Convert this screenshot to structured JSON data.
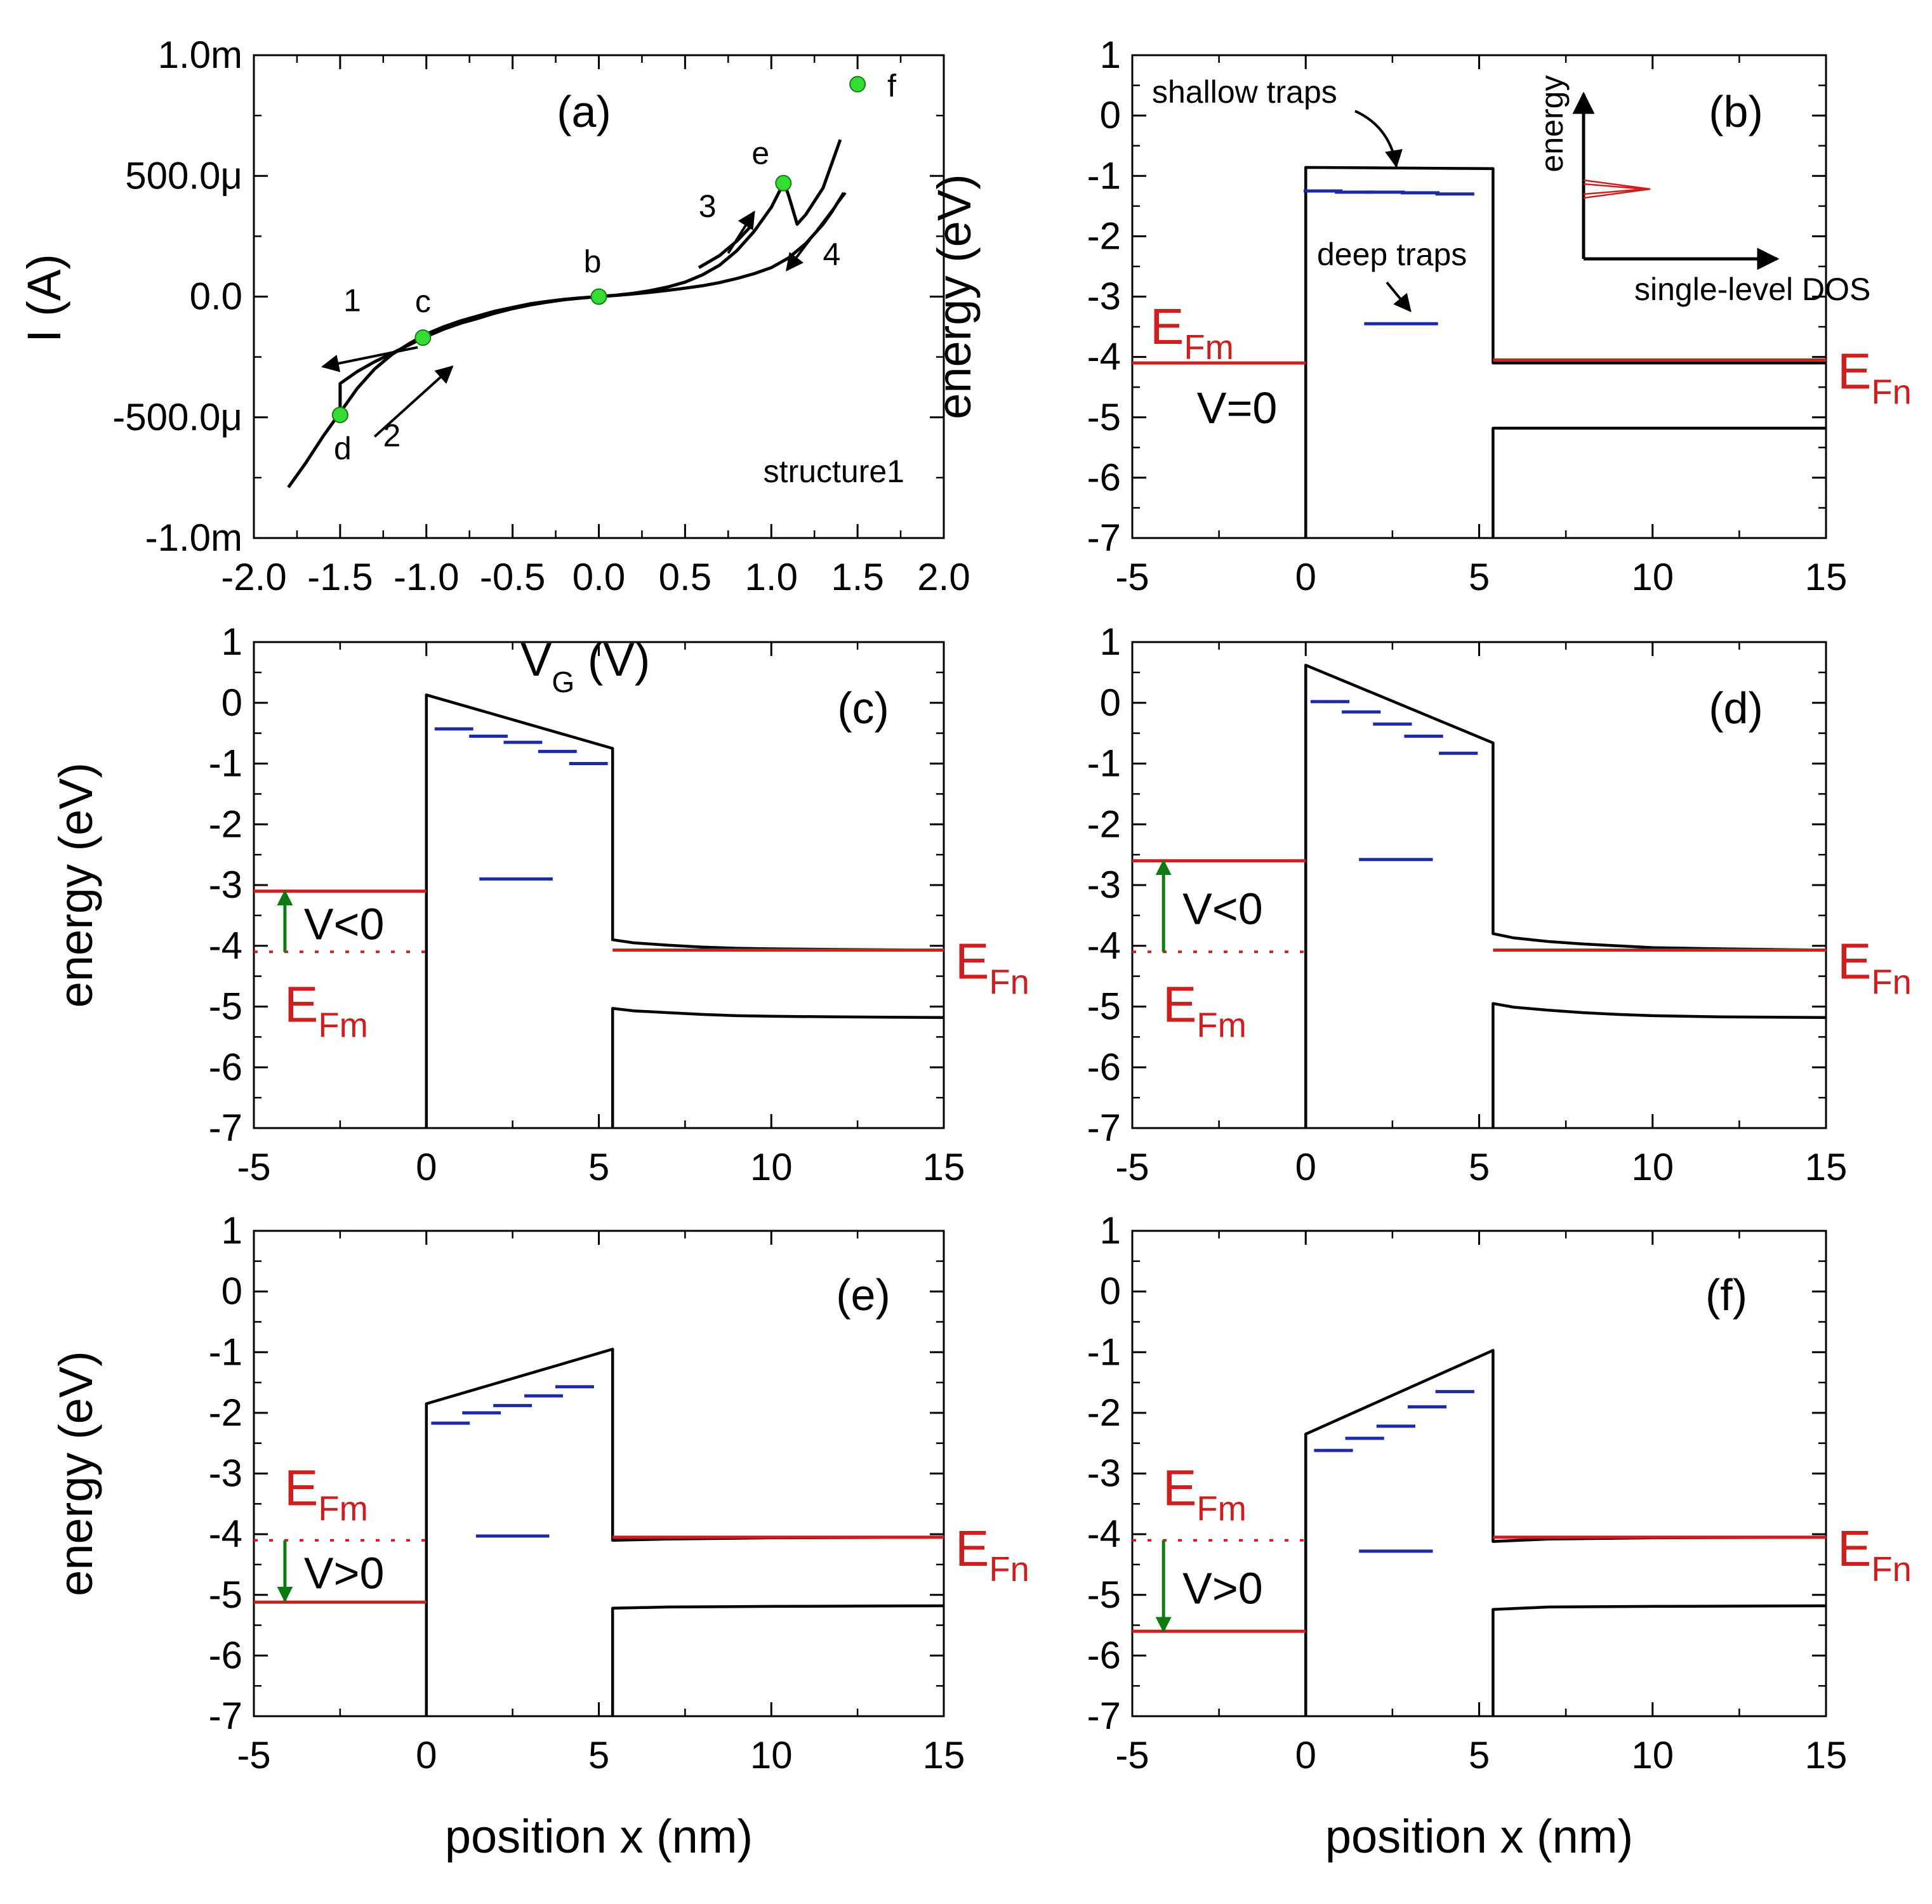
{
  "figure": {
    "colors": {
      "band": "#000000",
      "fermi": "#cc1f1f",
      "trap": "#1d2aa8",
      "bias_arrow": "#0f7a14",
      "point": "#33dd33",
      "dos_peak": "#cc1f1f"
    }
  },
  "chart_data": [
    {
      "id": "a",
      "type": "line",
      "panel_label": "(a)",
      "xlabel": "V",
      "xlabel_sub": "G",
      "xlabel_unit": " (V)",
      "ylabel": "I (A)",
      "xlim": [
        -2.0,
        2.0
      ],
      "ylim": [
        -0.001,
        0.001
      ],
      "x_ticks": [
        -2.0,
        -1.5,
        -1.0,
        -0.5,
        0.0,
        0.5,
        1.0,
        1.5,
        2.0
      ],
      "x_tick_labels": [
        "-2.0",
        "-1.5",
        "-1.0",
        "-0.5",
        "0.0",
        "0.5",
        "1.0",
        "1.5",
        "2.0"
      ],
      "y_ticks": [
        -0.001,
        -0.0005,
        0.0,
        0.0005,
        0.001
      ],
      "y_tick_labels": [
        "-1.0m",
        "-500.0μ",
        "0.0",
        "500.0μ",
        "1.0m"
      ],
      "structure_label": "structure1",
      "series": [
        {
          "name": "sweep 1-2 (negative bias)",
          "x": [
            -1.8,
            -1.7,
            -1.6,
            -1.5,
            -1.5,
            -1.4,
            -1.3,
            -1.2,
            -1.1,
            -1.0,
            -0.9,
            -0.8,
            -0.7,
            -0.6,
            -0.5,
            -0.4,
            -0.3,
            -0.2,
            -0.1,
            0.0
          ],
          "y": [
            -0.00079,
            -0.00069,
            -0.00058,
            -0.00048,
            -0.00036,
            -0.00031,
            -0.00027,
            -0.000235,
            -0.0002,
            -0.000165,
            -0.000135,
            -0.00011,
            -9e-05,
            -6.8e-05,
            -5e-05,
            -3.5e-05,
            -2.3e-05,
            -1.3e-05,
            -6e-06,
            0.0
          ]
        },
        {
          "name": "sweep 1-2 return branch",
          "x": [
            -1.5,
            -1.4,
            -1.3,
            -1.2,
            -1.1,
            -1.0,
            -0.9,
            -0.8,
            -0.7,
            -0.6,
            -0.5,
            -0.4,
            -0.3,
            -0.2,
            -0.1,
            0.0
          ],
          "y": [
            -0.00048,
            -0.00038,
            -0.0003,
            -0.00024,
            -0.000195,
            -0.000155,
            -0.000125,
            -0.0001,
            -8e-05,
            -6e-05,
            -4.5e-05,
            -3e-05,
            -2e-05,
            -1.1e-05,
            -5e-06,
            0.0
          ]
        },
        {
          "name": "sweep 3-4 (positive bias)",
          "x": [
            0.0,
            0.1,
            0.2,
            0.3,
            0.4,
            0.5,
            0.6,
            0.7,
            0.8,
            0.9,
            1.0,
            1.05,
            1.07,
            1.1,
            1.15,
            1.2,
            1.3,
            1.4
          ],
          "y": [
            0.0,
            6e-06,
            1.4e-05,
            2.5e-05,
            4e-05,
            6e-05,
            9e-05,
            0.00013,
            0.00019,
            0.00027,
            0.00037,
            0.00044,
            0.00048,
            0.00042,
            0.0003,
            0.00034,
            0.00045,
            0.00065
          ]
        },
        {
          "name": "sweep 3-4 return branch",
          "x": [
            1.42,
            1.35,
            1.3,
            1.2,
            1.1,
            1.0,
            0.9,
            0.8,
            0.7,
            0.6,
            0.5,
            0.4,
            0.3,
            0.2,
            0.1,
            0.0
          ],
          "y": [
            0.00043,
            0.00035,
            0.0003,
            0.00022,
            0.00016,
            0.00012,
            9.5e-05,
            7.5e-05,
            5.8e-05,
            4.5e-05,
            3.5e-05,
            2.6e-05,
            1.8e-05,
            1.1e-05,
            5e-06,
            0.0
          ]
        },
        {
          "name": "sweep 3 guide",
          "x": [
            0.58,
            0.7,
            0.8,
            0.88
          ],
          "y": [
            0.00012,
            0.00017,
            0.00023,
            0.00029
          ]
        }
      ],
      "points": [
        {
          "label": "b",
          "x": 0.0,
          "y": 0.0
        },
        {
          "label": "c",
          "x": -1.02,
          "y": -0.00017
        },
        {
          "label": "d",
          "x": -1.5,
          "y": -0.00049
        },
        {
          "label": "e",
          "x": 1.07,
          "y": 0.00047
        },
        {
          "label": "f",
          "x": 1.5,
          "y": 0.00088
        }
      ],
      "sweep_arrows": [
        {
          "label": "1",
          "from": [
            -1.05,
            -0.00021
          ],
          "to": [
            -1.6,
            -0.00029
          ],
          "label_at": [
            -1.43,
            -6e-05
          ]
        },
        {
          "label": "2",
          "from": [
            -1.3,
            -0.00058
          ],
          "to": [
            -0.85,
            -0.00029
          ],
          "label_at": [
            -1.2,
            -0.00062
          ]
        },
        {
          "label": "3",
          "from": [
            0.75,
            0.00018
          ],
          "to": [
            0.9,
            0.00035
          ],
          "label_at": [
            0.63,
            0.00033
          ]
        },
        {
          "label": "4",
          "from": [
            1.43,
            0.00043
          ],
          "to": [
            1.09,
            0.00011
          ],
          "label_at": [
            1.35,
            0.00013
          ]
        }
      ]
    },
    {
      "id": "b",
      "type": "line",
      "panel_label": "(b)",
      "xlabel": "",
      "ylabel": "energy (eV)",
      "xlim": [
        -5,
        15
      ],
      "ylim": [
        -7,
        1
      ],
      "x_ticks": [
        -5,
        0,
        5,
        10,
        15
      ],
      "y_ticks": [
        1,
        0,
        -1,
        -2,
        -3,
        -4,
        -5,
        -6,
        -7
      ],
      "bias_label": "V=0",
      "efm_label": "E",
      "efm_sub": "Fm",
      "efn_label": "E",
      "efn_sub": "Fn",
      "series": [
        {
          "name": "conduction band",
          "x": [
            0,
            0,
            5.4,
            5.4,
            15
          ],
          "y": [
            -7,
            -0.86,
            -0.88,
            -4.1,
            -4.1
          ]
        },
        {
          "name": "valence band",
          "x": [
            5.4,
            5.4,
            15
          ],
          "y": [
            -7,
            -5.18,
            -5.18
          ]
        },
        {
          "name": "E_Fm",
          "x": [
            -5,
            0
          ],
          "y": [
            -4.1,
            -4.1
          ]
        },
        {
          "name": "E_Fn",
          "x": [
            5.4,
            15
          ],
          "y": [
            -4.05,
            -4.05
          ]
        }
      ],
      "shallow_traps": [
        [
          0.5,
          -1.25
        ],
        [
          1.4,
          -1.27
        ],
        [
          2.3,
          -1.27
        ],
        [
          3.3,
          -1.28
        ],
        [
          4.3,
          -1.3
        ]
      ],
      "deep_traps": [
        [
          2.75,
          -3.45
        ]
      ],
      "annotations": {
        "shallow": "shallow traps",
        "deep": "deep traps"
      },
      "inset": {
        "ylabel": "energy",
        "xlabel": "single-level DOS"
      }
    },
    {
      "id": "c",
      "type": "line",
      "panel_label": "(c)",
      "xlabel": "",
      "ylabel": "energy (eV)",
      "xlim": [
        -5,
        15
      ],
      "ylim": [
        -7,
        1
      ],
      "x_ticks": [
        -5,
        0,
        5,
        10,
        15
      ],
      "y_ticks": [
        1,
        0,
        -1,
        -2,
        -3,
        -4,
        -5,
        -6,
        -7
      ],
      "bias_label": "V<0",
      "bias_arrow": {
        "from": -4.1,
        "to": -3.1
      },
      "efm_label": "E",
      "efm_sub": "Fm",
      "efn_label": "E",
      "efn_sub": "Fn",
      "series": [
        {
          "name": "conduction band",
          "x": [
            0,
            0,
            5.4,
            5.4,
            6,
            7,
            8,
            9,
            10,
            12,
            15
          ],
          "y": [
            -7,
            0.13,
            -0.75,
            -3.9,
            -3.95,
            -3.99,
            -4.02,
            -4.04,
            -4.05,
            -4.06,
            -4.07
          ]
        },
        {
          "name": "valence band",
          "x": [
            5.4,
            5.4,
            6,
            7,
            8,
            9,
            10,
            12,
            15
          ],
          "y": [
            -7,
            -5.03,
            -5.07,
            -5.1,
            -5.13,
            -5.15,
            -5.16,
            -5.17,
            -5.18
          ]
        },
        {
          "name": "E_Fm",
          "x": [
            -5,
            0
          ],
          "y": [
            -3.1,
            -3.1
          ]
        },
        {
          "name": "E_Fm (V=0)",
          "x": [
            -5,
            0
          ],
          "y": [
            -4.1,
            -4.1
          ]
        },
        {
          "name": "E_Fn",
          "x": [
            5.4,
            15
          ],
          "y": [
            -4.07,
            -4.07
          ]
        }
      ],
      "shallow_traps": [
        [
          0.8,
          -0.43
        ],
        [
          1.8,
          -0.55
        ],
        [
          2.8,
          -0.65
        ],
        [
          3.8,
          -0.8
        ],
        [
          4.7,
          -1.0
        ]
      ],
      "deep_traps": [
        [
          2.6,
          -2.9
        ]
      ]
    },
    {
      "id": "d",
      "type": "line",
      "panel_label": "(d)",
      "xlabel": "",
      "ylabel": "",
      "xlim": [
        -5,
        15
      ],
      "ylim": [
        -7,
        1
      ],
      "x_ticks": [
        -5,
        0,
        5,
        10,
        15
      ],
      "y_ticks": [
        1,
        0,
        -1,
        -2,
        -3,
        -4,
        -5,
        -6,
        -7
      ],
      "bias_label": "V<0",
      "bias_arrow": {
        "from": -4.1,
        "to": -2.6
      },
      "efm_label": "E",
      "efm_sub": "Fm",
      "efn_label": "E",
      "efn_sub": "Fn",
      "series": [
        {
          "name": "conduction band",
          "x": [
            0,
            0,
            5.4,
            5.4,
            6,
            7,
            8,
            9,
            10,
            12,
            15
          ],
          "y": [
            -7,
            0.62,
            -0.66,
            -3.8,
            -3.87,
            -3.93,
            -3.97,
            -4.0,
            -4.03,
            -4.05,
            -4.07
          ]
        },
        {
          "name": "valence band",
          "x": [
            5.4,
            5.4,
            6,
            7,
            8,
            9,
            10,
            12,
            15
          ],
          "y": [
            -7,
            -4.95,
            -5.01,
            -5.06,
            -5.1,
            -5.13,
            -5.15,
            -5.17,
            -5.18
          ]
        },
        {
          "name": "E_Fm",
          "x": [
            -5,
            0
          ],
          "y": [
            -2.6,
            -2.6
          ]
        },
        {
          "name": "E_Fm (V=0)",
          "x": [
            -5,
            0
          ],
          "y": [
            -4.1,
            -4.1
          ]
        },
        {
          "name": "E_Fn",
          "x": [
            5.4,
            15
          ],
          "y": [
            -4.07,
            -4.07
          ]
        }
      ],
      "shallow_traps": [
        [
          0.7,
          0.02
        ],
        [
          1.6,
          -0.15
        ],
        [
          2.5,
          -0.35
        ],
        [
          3.4,
          -0.55
        ],
        [
          4.4,
          -0.83
        ]
      ],
      "deep_traps": [
        [
          2.6,
          -2.58
        ]
      ]
    },
    {
      "id": "e",
      "type": "line",
      "panel_label": "(e)",
      "xlabel": "position x (nm)",
      "ylabel": "energy (eV)",
      "xlim": [
        -5,
        15
      ],
      "ylim": [
        -7,
        1
      ],
      "x_ticks": [
        -5,
        0,
        5,
        10,
        15
      ],
      "y_ticks": [
        1,
        0,
        -1,
        -2,
        -3,
        -4,
        -5,
        -6,
        -7
      ],
      "bias_label": "V>0",
      "bias_arrow": {
        "from": -4.1,
        "to": -5.1
      },
      "efm_label": "E",
      "efm_sub": "Fm",
      "efn_label": "E",
      "efn_sub": "Fn",
      "series": [
        {
          "name": "conduction band",
          "x": [
            0,
            0,
            5.4,
            5.4,
            7,
            10,
            15
          ],
          "y": [
            -7,
            -1.85,
            -0.95,
            -4.1,
            -4.08,
            -4.06,
            -4.05
          ]
        },
        {
          "name": "valence band",
          "x": [
            5.4,
            5.4,
            7,
            10,
            15
          ],
          "y": [
            -7,
            -5.22,
            -5.2,
            -5.19,
            -5.18
          ]
        },
        {
          "name": "E_Fm",
          "x": [
            -5,
            0
          ],
          "y": [
            -5.12,
            -5.12
          ]
        },
        {
          "name": "E_Fm (V=0)",
          "x": [
            -5,
            0
          ],
          "y": [
            -4.1,
            -4.1
          ]
        },
        {
          "name": "E_Fn",
          "x": [
            5.4,
            15
          ],
          "y": [
            -4.05,
            -4.05
          ]
        }
      ],
      "shallow_traps": [
        [
          0.7,
          -2.17
        ],
        [
          1.6,
          -2.0
        ],
        [
          2.5,
          -1.88
        ],
        [
          3.4,
          -1.72
        ],
        [
          4.3,
          -1.57
        ]
      ],
      "deep_traps": [
        [
          2.5,
          -4.03
        ]
      ]
    },
    {
      "id": "f",
      "type": "line",
      "panel_label": "(f)",
      "xlabel": "position x (nm)",
      "ylabel": "",
      "xlim": [
        -5,
        15
      ],
      "ylim": [
        -7,
        1
      ],
      "x_ticks": [
        -5,
        0,
        5,
        10,
        15
      ],
      "y_ticks": [
        1,
        0,
        -1,
        -2,
        -3,
        -4,
        -5,
        -6,
        -7
      ],
      "bias_label": "V>0",
      "bias_arrow": {
        "from": -4.1,
        "to": -5.6
      },
      "efm_label": "E",
      "efm_sub": "Fm",
      "efn_label": "E",
      "efn_sub": "Fn",
      "series": [
        {
          "name": "conduction band",
          "x": [
            0,
            0,
            5.4,
            5.4,
            7,
            10,
            15
          ],
          "y": [
            -7,
            -2.35,
            -0.97,
            -4.12,
            -4.08,
            -4.06,
            -4.05
          ]
        },
        {
          "name": "valence band",
          "x": [
            5.4,
            5.4,
            7,
            10,
            15
          ],
          "y": [
            -7,
            -5.24,
            -5.2,
            -5.19,
            -5.18
          ]
        },
        {
          "name": "E_Fm",
          "x": [
            -5,
            0
          ],
          "y": [
            -5.6,
            -5.6
          ]
        },
        {
          "name": "E_Fm (V=0)",
          "x": [
            -5,
            0
          ],
          "y": [
            -4.1,
            -4.1
          ]
        },
        {
          "name": "E_Fn",
          "x": [
            5.4,
            15
          ],
          "y": [
            -4.05,
            -4.05
          ]
        }
      ],
      "shallow_traps": [
        [
          0.8,
          -2.62
        ],
        [
          1.7,
          -2.42
        ],
        [
          2.6,
          -2.22
        ],
        [
          3.5,
          -1.9
        ],
        [
          4.3,
          -1.65
        ]
      ],
      "deep_traps": [
        [
          2.6,
          -4.28
        ]
      ]
    }
  ]
}
